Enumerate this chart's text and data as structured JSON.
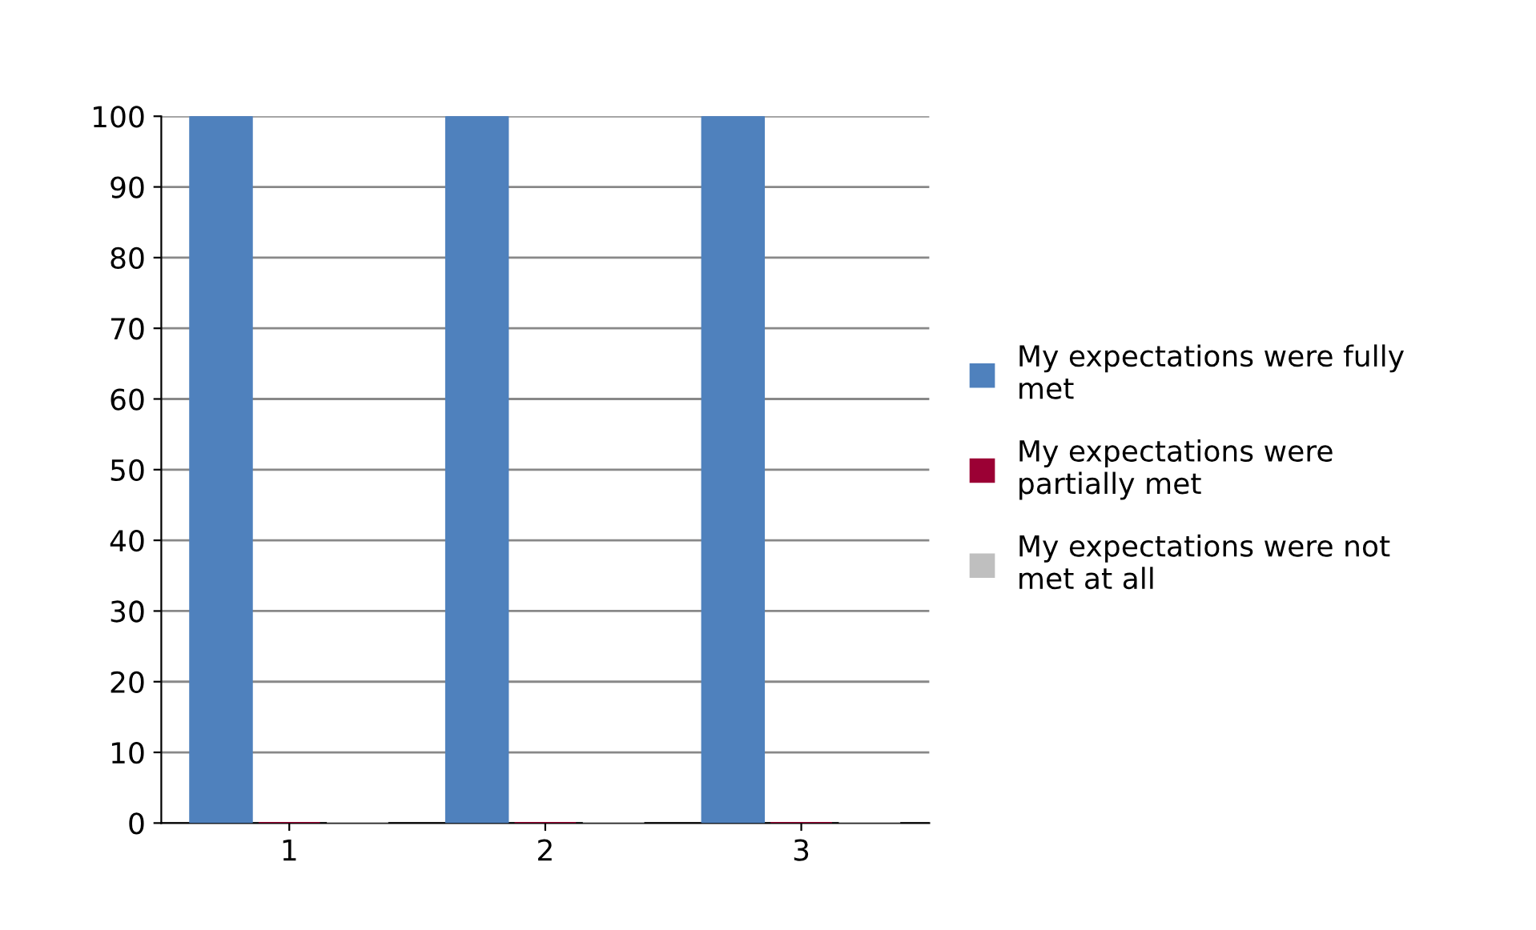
{
  "chart_data": {
    "type": "bar",
    "categories": [
      "1",
      "2",
      "3"
    ],
    "series": [
      {
        "name": "My expectations were fully met",
        "color": "#4f81bd",
        "values": [
          100,
          100,
          100
        ]
      },
      {
        "name": "My expectations were partially met",
        "color": "#9b0034",
        "values": [
          0,
          0,
          0
        ]
      },
      {
        "name": "My expectations were not met at all",
        "color": "#bfbfbf",
        "values": [
          0,
          0,
          0
        ]
      }
    ],
    "ylim": [
      0,
      100
    ],
    "yticks": [
      0,
      10,
      20,
      30,
      40,
      50,
      60,
      70,
      80,
      90,
      100
    ],
    "grid": "y",
    "legend": "right"
  }
}
